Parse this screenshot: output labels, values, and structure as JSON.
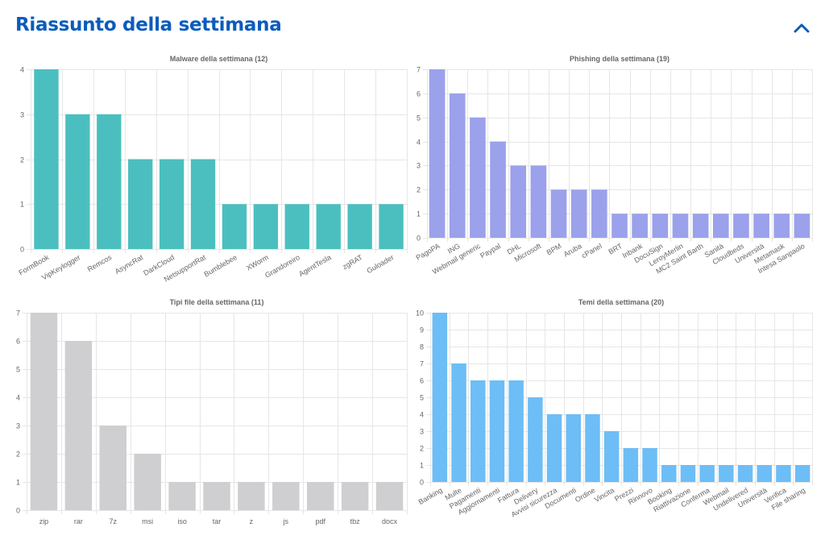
{
  "header": {
    "title": "Riassunto della settimana",
    "collapse_icon": "chevron-up-icon",
    "accent": "#0b5cbb"
  },
  "chart_data": [
    {
      "id": "malware",
      "type": "bar",
      "title": "Malware della settimana (12)",
      "color": "#4bbfbf",
      "ylim": [
        0,
        4
      ],
      "yticks": [
        0,
        1,
        2,
        3,
        4
      ],
      "x_label_rotation": "diagonal",
      "grid": true,
      "categories": [
        "FormBook",
        "VipKeylogger",
        "Remcos",
        "AsyncRat",
        "DarkCloud",
        "NetsupportRat",
        "Bumblebee",
        "XWorm",
        "Grandoreiro",
        "AgentTesla",
        "zgRAT",
        "Guloader"
      ],
      "values": [
        4,
        3,
        3,
        2,
        2,
        2,
        1,
        1,
        1,
        1,
        1,
        1
      ]
    },
    {
      "id": "phishing",
      "type": "bar",
      "title": "Phishing della settimana (19)",
      "color": "#9ba1ea",
      "ylim": [
        0,
        7
      ],
      "yticks": [
        0,
        1,
        2,
        3,
        4,
        5,
        6,
        7
      ],
      "x_label_rotation": "diagonal",
      "grid": true,
      "categories": [
        "PagoPA",
        "ING",
        "Webmail generic",
        "Paypal",
        "DHL",
        "Microsoft",
        "BPM",
        "Aruba",
        "cPanel",
        "BRT",
        "Inbank",
        "DocuSign",
        "LeroyMerlin",
        "MC2 Saint Barth",
        "Sanità",
        "Cloudbeds",
        "Università",
        "Metamask",
        "Intesa Sanpaolo"
      ],
      "values": [
        7,
        6,
        5,
        4,
        3,
        3,
        2,
        2,
        2,
        1,
        1,
        1,
        1,
        1,
        1,
        1,
        1,
        1,
        1
      ]
    },
    {
      "id": "filetypes",
      "type": "bar",
      "title": "Tipi file della settimana (11)",
      "color": "#cfcfd1",
      "ylim": [
        0,
        7
      ],
      "yticks": [
        0,
        1,
        2,
        3,
        4,
        5,
        6,
        7
      ],
      "x_label_rotation": "horizontal",
      "grid": true,
      "categories": [
        "zip",
        "rar",
        "7z",
        "msi",
        "iso",
        "tar",
        "z",
        "js",
        "pdf",
        "tbz",
        "docx"
      ],
      "values": [
        7,
        6,
        3,
        2,
        1,
        1,
        1,
        1,
        1,
        1,
        1
      ]
    },
    {
      "id": "themes",
      "type": "bar",
      "title": "Temi della settimana (20)",
      "color": "#6dbdf6",
      "ylim": [
        0,
        10
      ],
      "yticks": [
        0,
        1,
        2,
        3,
        4,
        5,
        6,
        7,
        8,
        9,
        10
      ],
      "x_label_rotation": "diagonal",
      "grid": true,
      "categories": [
        "Banking",
        "Multe",
        "Pagamenti",
        "Aggiornamenti",
        "Fattura",
        "Delivery",
        "Avvisi sicurezza",
        "Documenti",
        "Ordine",
        "Vincita",
        "Prezzi",
        "Rinnovo",
        "Booking",
        "Riattivazione",
        "Conferma",
        "Webmail",
        "Undelivered",
        "Università",
        "Verifica",
        "File sharing"
      ],
      "values": [
        10,
        7,
        6,
        6,
        6,
        5,
        4,
        4,
        4,
        3,
        2,
        2,
        1,
        1,
        1,
        1,
        1,
        1,
        1,
        1
      ]
    }
  ]
}
